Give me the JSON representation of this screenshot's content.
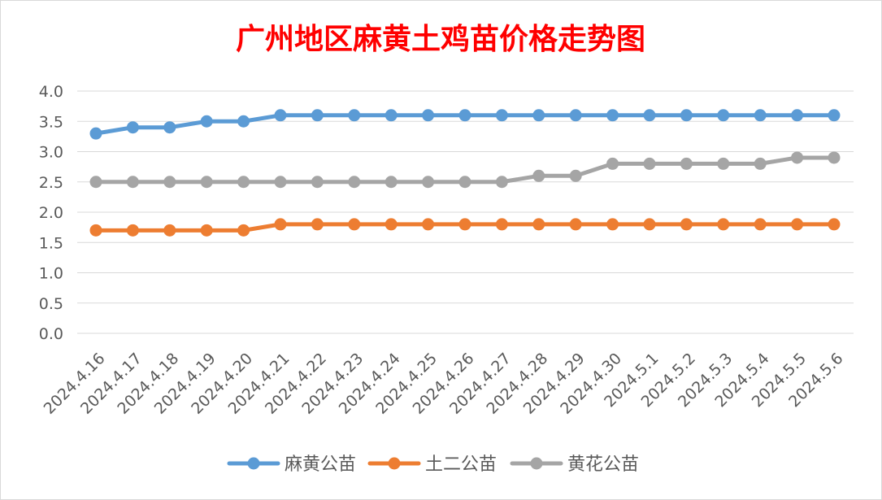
{
  "chart_data": {
    "type": "line",
    "title": "广州地区麻黄土鸡苗价格走势图",
    "xlabel": "",
    "ylabel": "",
    "ylim": [
      0,
      4.0
    ],
    "yticks": [
      "0.0",
      "0.5",
      "1.0",
      "1.5",
      "2.0",
      "2.5",
      "3.0",
      "3.5",
      "4.0"
    ],
    "grid": true,
    "legend_position": "bottom",
    "categories": [
      "2024.4.16",
      "2024.4.17",
      "2024.4.18",
      "2024.4.19",
      "2024.4.20",
      "2024.4.21",
      "2024.4.22",
      "2024.4.23",
      "2024.4.24",
      "2024.4.25",
      "2024.4.26",
      "2024.4.27",
      "2024.4.28",
      "2024.4.29",
      "2024.4.30",
      "2024.5.1",
      "2024.5.2",
      "2024.5.3",
      "2024.5.4",
      "2024.5.5",
      "2024.5.6"
    ],
    "series": [
      {
        "name": "麻黄公苗",
        "color": "#5b9bd5",
        "values": [
          3.3,
          3.4,
          3.4,
          3.5,
          3.5,
          3.6,
          3.6,
          3.6,
          3.6,
          3.6,
          3.6,
          3.6,
          3.6,
          3.6,
          3.6,
          3.6,
          3.6,
          3.6,
          3.6,
          3.6,
          3.6
        ]
      },
      {
        "name": "土二公苗",
        "color": "#ed7d31",
        "values": [
          1.7,
          1.7,
          1.7,
          1.7,
          1.7,
          1.8,
          1.8,
          1.8,
          1.8,
          1.8,
          1.8,
          1.8,
          1.8,
          1.8,
          1.8,
          1.8,
          1.8,
          1.8,
          1.8,
          1.8,
          1.8
        ]
      },
      {
        "name": "黄花公苗",
        "color": "#a5a5a5",
        "values": [
          2.5,
          2.5,
          2.5,
          2.5,
          2.5,
          2.5,
          2.5,
          2.5,
          2.5,
          2.5,
          2.5,
          2.5,
          2.6,
          2.6,
          2.8,
          2.8,
          2.8,
          2.8,
          2.8,
          2.9,
          2.9
        ]
      }
    ]
  }
}
